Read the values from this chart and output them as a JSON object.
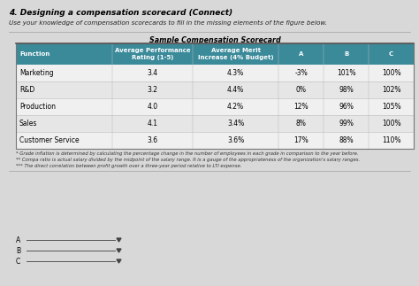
{
  "main_title": "4. Designing a compensation scorecard (Connect)",
  "subtitle": "Use your knowledge of compensation scorecards to fill in the missing elements of the figure below.",
  "table_title": "Sample Compensation Scorecard",
  "headers": [
    "Function",
    "Average Performance\nRating (1-5)",
    "Average Merit\nIncrease (4% Budget)",
    "A",
    "B",
    "C"
  ],
  "rows": [
    [
      "Marketing",
      "3.4",
      "4.3%",
      "-3%",
      "101%",
      "100%"
    ],
    [
      "R&D",
      "3.2",
      "4.4%",
      "0%",
      "98%",
      "102%"
    ],
    [
      "Production",
      "4.0",
      "4.2%",
      "12%",
      "96%",
      "105%"
    ],
    [
      "Sales",
      "4.1",
      "3.4%",
      "8%",
      "99%",
      "100%"
    ],
    [
      "Customer Service",
      "3.6",
      "3.6%",
      "17%",
      "88%",
      "110%"
    ]
  ],
  "footnotes": [
    "* Grade inflation is determined by calculating the percentage change in the number of employees in each grade in comparison to the year before.",
    "** Compa ratio is actual salary divided by the midpoint of the salary range. It is a gauge of the appropriateness of the organization's salary ranges.",
    "*** The direct correlation between profit growth over a three-year period relative to LTI expense."
  ],
  "dropdown_labels": [
    "A",
    "B",
    "C"
  ],
  "header_bg": "#3a8a9a",
  "header_text": "#ffffff",
  "row_bg_odd": "#f0f0f0",
  "row_bg_even": "#e6e6e6",
  "bg_color": "#d8d8d8",
  "table_bg": "#ffffff",
  "col_widths_rel": [
    90,
    75,
    80,
    42,
    42,
    42
  ],
  "title_fontsize": 6.5,
  "subtitle_fontsize": 5.2,
  "header_fontsize": 5.0,
  "cell_fontsize": 5.5,
  "footnote_fontsize": 3.8,
  "dropdown_fontsize": 5.5
}
